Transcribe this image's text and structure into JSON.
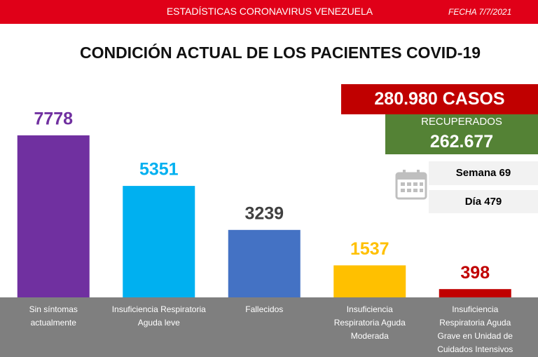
{
  "header": {
    "title": "ESTADÍSTICAS CORONAVIRUS VENEZUELA",
    "date": "FECHA 7/7/2021"
  },
  "summary": {
    "cases": "280.980 CASOS",
    "recovered_label": "RECUPERADOS",
    "recovered": "262.677",
    "week": "Semana 69",
    "day": "Día 479"
  },
  "chart_data": {
    "type": "bar",
    "title": "CONDICIÓN ACTUAL DE LOS PACIENTES COVID-19",
    "categories": [
      "Sin síntomas actualmente",
      "Insuficiencia Respiratoria Aguda leve",
      "Fallecidos",
      "Insuficiencia Respiratoria Aguda Moderada",
      "Insuficiencia Respiratoria Aguda Grave en Unidad de Cuidados Intensivos"
    ],
    "values": [
      7778,
      5351,
      3239,
      1537,
      398
    ],
    "colors": [
      "#7030a0",
      "#00b0f0",
      "#4472c4",
      "#ffc000",
      "#c00000"
    ],
    "label_colors": [
      "#7030a0",
      "#00b0f0",
      "#404040",
      "#ffc000",
      "#c00000"
    ]
  }
}
